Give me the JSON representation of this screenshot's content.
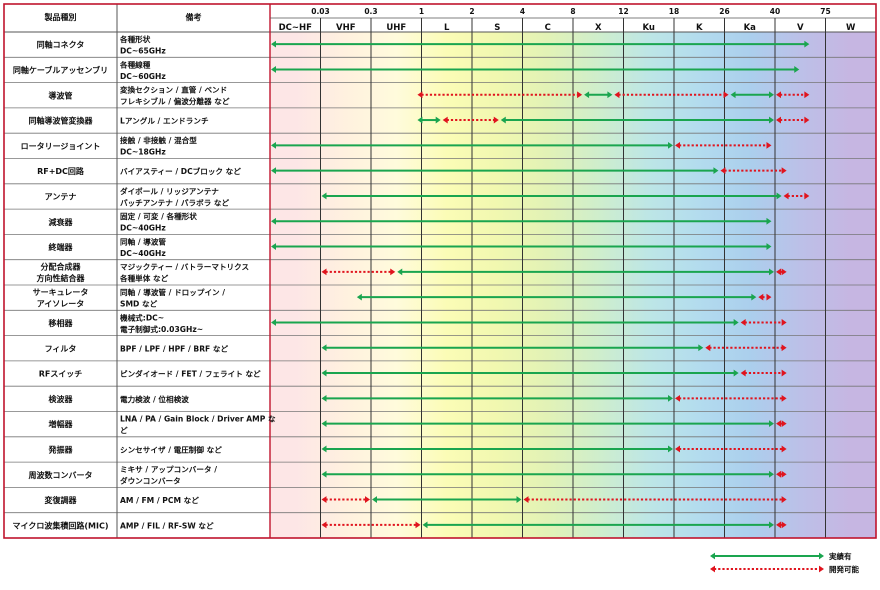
{
  "chart_data": {
    "type": "table",
    "headers": {
      "product": "製品種別",
      "remarks": "備考"
    },
    "bands": [
      "DC~HF",
      "VHF",
      "UHF",
      "L",
      "S",
      "C",
      "X",
      "Ku",
      "K",
      "Ka",
      "V",
      "W"
    ],
    "boundaries": [
      "0.03",
      "0.3",
      "1",
      "2",
      "4",
      "8",
      "12",
      "18",
      "26",
      "40",
      "75"
    ],
    "band_colors": [
      "#fde6e6",
      "#fff1df",
      "#fffbdc",
      "#fbfcb6",
      "#f1f8b0",
      "#e2f2b6",
      "#cfeecc",
      "#bde6e6",
      "#b3dcee",
      "#abcfed",
      "#bcc0e8",
      "#c6b6e2"
    ],
    "colors": {
      "achieved": "#1aa54f",
      "possible": "#e0141e",
      "frame": "#c0142d",
      "grid": "#555555"
    },
    "rows": [
      {
        "name": "同軸コネクタ",
        "remarks": [
          "各種形状",
          "DC~65GHz"
        ],
        "segments": [
          {
            "type": "achieved",
            "from": 0.0,
            "to": 10.7
          }
        ]
      },
      {
        "name": "同軸ケーブルアッセンブリ",
        "remarks": [
          "各種線種",
          "DC~60GHz"
        ],
        "segments": [
          {
            "type": "achieved",
            "from": 0.0,
            "to": 10.5
          }
        ]
      },
      {
        "name": "導波管",
        "remarks": [
          "変換セクション / 直管 / ベンド",
          "フレキシブル / 偏波分離器 など"
        ],
        "segments": [
          {
            "type": "possible",
            "from": 2.9,
            "to": 6.2
          },
          {
            "type": "achieved",
            "from": 6.2,
            "to": 6.8
          },
          {
            "type": "possible",
            "from": 6.8,
            "to": 9.1
          },
          {
            "type": "achieved",
            "from": 9.1,
            "to": 10.0
          },
          {
            "type": "possible",
            "from": 10.0,
            "to": 10.7
          }
        ]
      },
      {
        "name": "同軸導波管変換器",
        "remarks": [
          "Lアングル / エンドランチ"
        ],
        "segments": [
          {
            "type": "achieved",
            "from": 2.9,
            "to": 3.4
          },
          {
            "type": "possible",
            "from": 3.4,
            "to": 4.55
          },
          {
            "type": "achieved",
            "from": 4.55,
            "to": 10.0
          },
          {
            "type": "possible",
            "from": 10.0,
            "to": 10.7
          }
        ]
      },
      {
        "name": "ロータリージョイント",
        "remarks": [
          "接触 / 非接触 / 混合型",
          "DC~18GHz"
        ],
        "segments": [
          {
            "type": "achieved",
            "from": 0.0,
            "to": 8.0
          },
          {
            "type": "possible",
            "from": 8.0,
            "to": 9.95
          }
        ]
      },
      {
        "name": "RF+DC回路",
        "remarks": [
          "バイアスティー / DCブロック など"
        ],
        "segments": [
          {
            "type": "achieved",
            "from": 0.0,
            "to": 8.9
          },
          {
            "type": "possible",
            "from": 8.9,
            "to": 10.25
          }
        ]
      },
      {
        "name": "アンテナ",
        "remarks": [
          "ダイポール / リッジアンテナ",
          "パッチアンテナ / パラボラ など"
        ],
        "segments": [
          {
            "type": "achieved",
            "from": 1.0,
            "to": 10.15
          },
          {
            "type": "possible",
            "from": 10.15,
            "to": 10.7
          }
        ]
      },
      {
        "name": "減衰器",
        "remarks": [
          "固定 / 可変 / 各種形状",
          "DC~40GHz"
        ],
        "segments": [
          {
            "type": "achieved",
            "from": 0.0,
            "to": 9.95
          }
        ]
      },
      {
        "name": "終端器",
        "remarks": [
          "同軸 / 導波管",
          "DC~40GHz"
        ],
        "segments": [
          {
            "type": "achieved",
            "from": 0.0,
            "to": 9.95
          }
        ]
      },
      {
        "name": [
          "分配合成器",
          "方向性結合器"
        ],
        "remarks": [
          "マジックティー / バトラーマトリクス",
          "各種単体 など"
        ],
        "segments": [
          {
            "type": "possible",
            "from": 1.0,
            "to": 2.5
          },
          {
            "type": "achieved",
            "from": 2.5,
            "to": 10.0
          },
          {
            "type": "possible",
            "from": 10.0,
            "to": 10.25
          }
        ]
      },
      {
        "name": [
          "サーキュレータ",
          "アイソレータ"
        ],
        "remarks": [
          "同軸 / 導波管 / ドロップイン /",
          "SMD など"
        ],
        "segments": [
          {
            "type": "achieved",
            "from": 1.7,
            "to": 9.65
          },
          {
            "type": "possible",
            "from": 9.65,
            "to": 9.95
          }
        ]
      },
      {
        "name": "移相器",
        "remarks": [
          "機械式:DC~",
          "電子制御式:0.03GHz~"
        ],
        "segments": [
          {
            "type": "achieved",
            "from": 0.0,
            "to": 9.3
          },
          {
            "type": "possible",
            "from": 9.3,
            "to": 10.25
          }
        ]
      },
      {
        "name": "フィルタ",
        "remarks": [
          "BPF / LPF / HPF / BRF など"
        ],
        "segments": [
          {
            "type": "achieved",
            "from": 1.0,
            "to": 8.6
          },
          {
            "type": "possible",
            "from": 8.6,
            "to": 10.25
          }
        ]
      },
      {
        "name": "RFスイッチ",
        "remarks": [
          "ピンダイオード / FET / フェライト など"
        ],
        "segments": [
          {
            "type": "achieved",
            "from": 1.0,
            "to": 9.3
          },
          {
            "type": "possible",
            "from": 9.3,
            "to": 10.25
          }
        ]
      },
      {
        "name": "検波器",
        "remarks": [
          "電力検波 / 位相検波"
        ],
        "segments": [
          {
            "type": "achieved",
            "from": 1.0,
            "to": 8.0
          },
          {
            "type": "possible",
            "from": 8.0,
            "to": 10.25
          }
        ]
      },
      {
        "name": "増幅器",
        "remarks": [
          "LNA / PA / Gain Block / Driver AMP な",
          "ど"
        ],
        "segments": [
          {
            "type": "achieved",
            "from": 1.0,
            "to": 10.0
          },
          {
            "type": "possible",
            "from": 10.0,
            "to": 10.25
          }
        ]
      },
      {
        "name": "発振器",
        "remarks": [
          "シンセサイザ / 電圧制御 など"
        ],
        "segments": [
          {
            "type": "achieved",
            "from": 1.0,
            "to": 8.0
          },
          {
            "type": "possible",
            "from": 8.0,
            "to": 10.25
          }
        ]
      },
      {
        "name": "周波数コンバータ",
        "remarks": [
          "ミキサ / アップコンバータ /",
          "ダウンコンバータ"
        ],
        "segments": [
          {
            "type": "achieved",
            "from": 1.0,
            "to": 10.0
          },
          {
            "type": "possible",
            "from": 10.0,
            "to": 10.25
          }
        ]
      },
      {
        "name": "変復調器",
        "remarks": [
          "AM / FM / PCM など"
        ],
        "segments": [
          {
            "type": "possible",
            "from": 1.0,
            "to": 2.0
          },
          {
            "type": "achieved",
            "from": 2.0,
            "to": 5.0
          },
          {
            "type": "possible",
            "from": 5.0,
            "to": 10.25
          }
        ]
      },
      {
        "name": "マイクロ波集積回路(MIC)",
        "remarks": [
          "AMP / FIL / RF-SW など"
        ],
        "segments": [
          {
            "type": "possible",
            "from": 1.0,
            "to": 3.0
          },
          {
            "type": "achieved",
            "from": 3.0,
            "to": 10.0
          },
          {
            "type": "possible",
            "from": 10.0,
            "to": 10.25
          }
        ]
      }
    ],
    "legend": [
      {
        "type": "achieved",
        "label": "実績有"
      },
      {
        "type": "possible",
        "label": "開発可能"
      }
    ]
  }
}
